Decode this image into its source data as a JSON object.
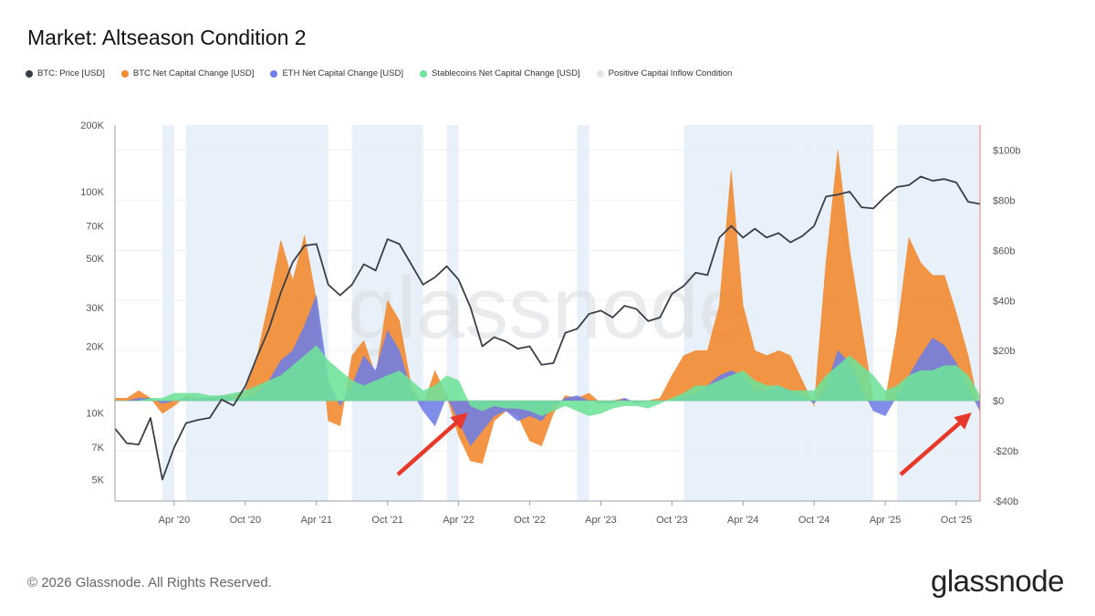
{
  "title": "Market: Altseason Condition 2",
  "legend": [
    {
      "label": "BTC: Price [USD]",
      "color": "#3a3f47"
    },
    {
      "label": "BTC Net Capital Change [USD]",
      "color": "#f28a30"
    },
    {
      "label": "ETH Net Capital Change [USD]",
      "color": "#6f7ee6"
    },
    {
      "label": "Stablecoins Net Capital Change [USD]",
      "color": "#6fe39a"
    },
    {
      "label": "Positive Capital Inflow Condition",
      "color": "#e8eaee"
    }
  ],
  "watermark": "glassnode",
  "footer": {
    "copyright": "© 2026 Glassnode. All Rights Reserved.",
    "logo": "glassnode"
  },
  "chart_data": {
    "type": "line",
    "title": "Market: Altseason Condition 2",
    "left_axis": {
      "scale": "log",
      "range": [
        4000,
        200000
      ],
      "ticks": [
        "5K",
        "7K",
        "10K",
        "20K",
        "30K",
        "50K",
        "70K",
        "100K",
        "200K"
      ],
      "tick_values": [
        5000,
        7000,
        10000,
        20000,
        30000,
        50000,
        70000,
        100000,
        200000
      ]
    },
    "right_axis": {
      "scale": "linear",
      "range": [
        -40,
        110
      ],
      "ticks": [
        "-$40b",
        "-$20b",
        "$0",
        "$20b",
        "$40b",
        "$60b",
        "$80b",
        "$100b"
      ],
      "tick_values": [
        -40,
        -20,
        0,
        20,
        40,
        60,
        80,
        100
      ]
    },
    "x_ticks": [
      "Apr '20",
      "Oct '20",
      "Apr '21",
      "Oct '21",
      "Apr '22",
      "Oct '22",
      "Apr '23",
      "Oct '23",
      "Apr '24",
      "Oct '24",
      "Apr '25",
      "Oct '25"
    ],
    "x_tick_dates": [
      "2020-04",
      "2020-10",
      "2021-04",
      "2021-10",
      "2022-04",
      "2022-10",
      "2023-04",
      "2023-10",
      "2024-04",
      "2024-10",
      "2025-04",
      "2025-10"
    ],
    "x_range": [
      "2019-11",
      "2025-12"
    ],
    "condition_periods": [
      [
        "2020-03",
        "2020-03"
      ],
      [
        "2020-05",
        "2021-04"
      ],
      [
        "2021-07",
        "2021-12"
      ],
      [
        "2022-03",
        "2022-03"
      ],
      [
        "2023-02",
        "2023-02"
      ],
      [
        "2023-11",
        "2024-08"
      ],
      [
        "2024-09",
        "2024-09"
      ],
      [
        "2024-10",
        "2025-02"
      ],
      [
        "2025-05",
        "2025-11"
      ]
    ],
    "series": [
      {
        "name": "BTC: Price [USD]",
        "axis": "left",
        "color": "#3a3f47",
        "x": [
          "2019-11",
          "2019-12",
          "2020-01",
          "2020-02",
          "2020-03",
          "2020-04",
          "2020-05",
          "2020-06",
          "2020-07",
          "2020-08",
          "2020-09",
          "2020-10",
          "2020-11",
          "2020-12",
          "2021-01",
          "2021-02",
          "2021-03",
          "2021-04",
          "2021-05",
          "2021-06",
          "2021-07",
          "2021-08",
          "2021-09",
          "2021-10",
          "2021-11",
          "2021-12",
          "2022-01",
          "2022-02",
          "2022-03",
          "2022-04",
          "2022-05",
          "2022-06",
          "2022-07",
          "2022-08",
          "2022-09",
          "2022-10",
          "2022-11",
          "2022-12",
          "2023-01",
          "2023-02",
          "2023-03",
          "2023-04",
          "2023-05",
          "2023-06",
          "2023-07",
          "2023-08",
          "2023-09",
          "2023-10",
          "2023-11",
          "2023-12",
          "2024-01",
          "2024-02",
          "2024-03",
          "2024-04",
          "2024-05",
          "2024-06",
          "2024-07",
          "2024-08",
          "2024-09",
          "2024-10",
          "2024-11",
          "2024-12",
          "2025-01",
          "2025-02",
          "2025-03",
          "2025-04",
          "2025-05",
          "2025-06",
          "2025-07",
          "2025-08",
          "2025-09",
          "2025-10",
          "2025-11",
          "2025-12"
        ],
        "values": [
          8500,
          7300,
          7200,
          9500,
          5000,
          7000,
          9000,
          9300,
          9500,
          11500,
          10800,
          13200,
          18000,
          24000,
          35000,
          48000,
          57000,
          58000,
          38000,
          34000,
          38000,
          47000,
          44000,
          61000,
          58000,
          47000,
          38000,
          41000,
          46000,
          40000,
          30000,
          20000,
          22000,
          21000,
          19500,
          20000,
          16500,
          16800,
          23000,
          24000,
          28000,
          29000,
          27000,
          30500,
          29500,
          26000,
          27000,
          34500,
          37500,
          43000,
          42000,
          62000,
          70000,
          62000,
          68000,
          62000,
          65000,
          59000,
          63000,
          70000,
          95000,
          97000,
          100000,
          85000,
          84000,
          95000,
          105000,
          107000,
          117000,
          112000,
          114000,
          110000,
          90000,
          88000
        ]
      },
      {
        "name": "BTC Net Capital Change [USD]",
        "axis": "right",
        "color": "#f28a30",
        "x": [
          "2019-11",
          "2019-12",
          "2020-01",
          "2020-02",
          "2020-03",
          "2020-04",
          "2020-05",
          "2020-06",
          "2020-07",
          "2020-08",
          "2020-09",
          "2020-10",
          "2020-11",
          "2020-12",
          "2021-01",
          "2021-02",
          "2021-03",
          "2021-04",
          "2021-05",
          "2021-06",
          "2021-07",
          "2021-08",
          "2021-09",
          "2021-10",
          "2021-11",
          "2021-12",
          "2022-01",
          "2022-02",
          "2022-03",
          "2022-04",
          "2022-05",
          "2022-06",
          "2022-07",
          "2022-08",
          "2022-09",
          "2022-10",
          "2022-11",
          "2022-12",
          "2023-01",
          "2023-02",
          "2023-03",
          "2023-04",
          "2023-05",
          "2023-06",
          "2023-07",
          "2023-08",
          "2023-09",
          "2023-10",
          "2023-11",
          "2023-12",
          "2024-01",
          "2024-02",
          "2024-03",
          "2024-04",
          "2024-05",
          "2024-06",
          "2024-07",
          "2024-08",
          "2024-09",
          "2024-10",
          "2024-11",
          "2024-12",
          "2025-01",
          "2025-02",
          "2025-03",
          "2025-04",
          "2025-05",
          "2025-06",
          "2025-07",
          "2025-08",
          "2025-09",
          "2025-10",
          "2025-11",
          "2025-12"
        ],
        "values": [
          1,
          1,
          4,
          1,
          -5,
          -2,
          2,
          1,
          1,
          2,
          2,
          4,
          18,
          40,
          64,
          48,
          66,
          40,
          -8,
          -10,
          18,
          24,
          10,
          40,
          32,
          6,
          -2,
          12,
          2,
          -14,
          -24,
          -25,
          -8,
          -4,
          -6,
          -16,
          -18,
          -5,
          2,
          1,
          3,
          -1,
          0,
          1,
          -1,
          0,
          1,
          10,
          18,
          20,
          20,
          38,
          92,
          38,
          20,
          18,
          20,
          18,
          8,
          -2,
          55,
          100,
          60,
          30,
          0,
          0,
          28,
          65,
          55,
          50,
          50,
          35,
          18,
          -5
        ]
      },
      {
        "name": "ETH Net Capital Change [USD]",
        "axis": "right",
        "color": "#6f7ee6",
        "x": [
          "2019-11",
          "2019-12",
          "2020-01",
          "2020-02",
          "2020-03",
          "2020-04",
          "2020-05",
          "2020-06",
          "2020-07",
          "2020-08",
          "2020-09",
          "2020-10",
          "2020-11",
          "2020-12",
          "2021-01",
          "2021-02",
          "2021-03",
          "2021-04",
          "2021-05",
          "2021-06",
          "2021-07",
          "2021-08",
          "2021-09",
          "2021-10",
          "2021-11",
          "2021-12",
          "2022-01",
          "2022-02",
          "2022-03",
          "2022-04",
          "2022-05",
          "2022-06",
          "2022-07",
          "2022-08",
          "2022-09",
          "2022-10",
          "2022-11",
          "2022-12",
          "2023-01",
          "2023-02",
          "2023-03",
          "2023-04",
          "2023-05",
          "2023-06",
          "2023-07",
          "2023-08",
          "2023-09",
          "2023-10",
          "2023-11",
          "2023-12",
          "2024-01",
          "2024-02",
          "2024-03",
          "2024-04",
          "2024-05",
          "2024-06",
          "2024-07",
          "2024-08",
          "2024-09",
          "2024-10",
          "2024-11",
          "2024-12",
          "2025-01",
          "2025-02",
          "2025-03",
          "2025-04",
          "2025-05",
          "2025-06",
          "2025-07",
          "2025-08",
          "2025-09",
          "2025-10",
          "2025-11",
          "2025-12"
        ],
        "values": [
          0,
          0,
          1,
          1,
          -1,
          0,
          1,
          1,
          1,
          2,
          1,
          1,
          3,
          8,
          16,
          20,
          30,
          42,
          8,
          -2,
          6,
          18,
          12,
          28,
          20,
          4,
          -4,
          -10,
          2,
          -8,
          -18,
          -12,
          -6,
          -4,
          -8,
          -6,
          -8,
          -2,
          1,
          2,
          0,
          -1,
          -1,
          1,
          -1,
          0,
          0,
          0,
          2,
          3,
          6,
          10,
          12,
          10,
          4,
          4,
          6,
          4,
          2,
          -1,
          5,
          20,
          15,
          5,
          -4,
          -6,
          2,
          10,
          18,
          25,
          22,
          15,
          5,
          -4
        ]
      },
      {
        "name": "Stablecoins Net Capital Change [USD]",
        "axis": "right",
        "color": "#6fe39a",
        "x": [
          "2019-11",
          "2019-12",
          "2020-01",
          "2020-02",
          "2020-03",
          "2020-04",
          "2020-05",
          "2020-06",
          "2020-07",
          "2020-08",
          "2020-09",
          "2020-10",
          "2020-11",
          "2020-12",
          "2021-01",
          "2021-02",
          "2021-03",
          "2021-04",
          "2021-05",
          "2021-06",
          "2021-07",
          "2021-08",
          "2021-09",
          "2021-10",
          "2021-11",
          "2021-12",
          "2022-01",
          "2022-02",
          "2022-03",
          "2022-04",
          "2022-05",
          "2022-06",
          "2022-07",
          "2022-08",
          "2022-09",
          "2022-10",
          "2022-11",
          "2022-12",
          "2023-01",
          "2023-02",
          "2023-03",
          "2023-04",
          "2023-05",
          "2023-06",
          "2023-07",
          "2023-08",
          "2023-09",
          "2023-10",
          "2023-11",
          "2023-12",
          "2024-01",
          "2024-02",
          "2024-03",
          "2024-04",
          "2024-05",
          "2024-06",
          "2024-07",
          "2024-08",
          "2024-09",
          "2024-10",
          "2024-11",
          "2024-12",
          "2025-01",
          "2025-02",
          "2025-03",
          "2025-04",
          "2025-05",
          "2025-06",
          "2025-07",
          "2025-08",
          "2025-09",
          "2025-10",
          "2025-11",
          "2025-12"
        ],
        "values": [
          0,
          0,
          0,
          1,
          1,
          3,
          3,
          3,
          2,
          2,
          3,
          4,
          6,
          8,
          10,
          14,
          18,
          22,
          16,
          12,
          8,
          6,
          8,
          10,
          12,
          8,
          4,
          6,
          10,
          8,
          -2,
          -4,
          -2,
          -3,
          -3,
          -4,
          -6,
          -4,
          -2,
          -4,
          -6,
          -5,
          -3,
          -2,
          -2,
          -3,
          -1,
          1,
          3,
          6,
          6,
          8,
          10,
          12,
          8,
          6,
          6,
          4,
          4,
          4,
          10,
          14,
          18,
          14,
          10,
          4,
          6,
          10,
          12,
          12,
          14,
          14,
          10,
          2
        ]
      }
    ]
  }
}
